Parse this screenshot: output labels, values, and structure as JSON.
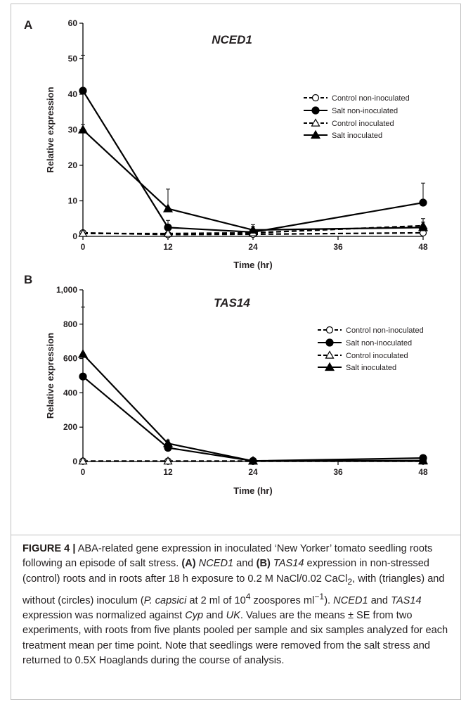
{
  "chart_data": [
    {
      "panel": "A",
      "type": "line",
      "title": "NCED1",
      "xlabel": "Time (hr)",
      "ylabel": "Relative expression",
      "x": [
        0,
        12,
        24,
        48
      ],
      "xticks": [
        "0",
        "12",
        "24",
        "36",
        "48"
      ],
      "xtick_values": [
        0,
        12,
        24,
        36,
        48
      ],
      "ylim": [
        0,
        60
      ],
      "yticks": [
        "0",
        "10",
        "20",
        "30",
        "40",
        "50",
        "60"
      ],
      "ytick_values": [
        0,
        10,
        20,
        30,
        40,
        50,
        60
      ],
      "legend_position": "right",
      "series": [
        {
          "name": "Control non-inoculated",
          "values": [
            1.0,
            0.5,
            0.6,
            1.0
          ],
          "errors": [
            0.5,
            0.3,
            0.3,
            0.5
          ],
          "marker": "circle-open",
          "line": "dashed"
        },
        {
          "name": "Salt non-inoculated",
          "values": [
            41.0,
            2.5,
            1.2,
            9.5
          ],
          "errors": [
            10.0,
            2.0,
            1.5,
            5.5
          ],
          "marker": "circle-filled",
          "line": "solid"
        },
        {
          "name": "Control inoculated",
          "values": [
            0.8,
            0.8,
            1.0,
            3.0
          ],
          "errors": [
            0.4,
            0.4,
            0.5,
            1.0
          ],
          "marker": "triangle-open",
          "line": "dashed"
        },
        {
          "name": "Salt inoculated",
          "values": [
            30.0,
            7.8,
            1.8,
            2.5
          ],
          "errors": [
            1.5,
            5.5,
            1.5,
            2.5
          ],
          "marker": "triangle-filled",
          "line": "solid"
        }
      ]
    },
    {
      "panel": "B",
      "type": "line",
      "title": "TAS14",
      "xlabel": "Time (hr)",
      "ylabel": "Relative expression",
      "x": [
        0,
        12,
        24,
        48
      ],
      "xticks": [
        "0",
        "12",
        "24",
        "36",
        "48"
      ],
      "xtick_values": [
        0,
        12,
        24,
        36,
        48
      ],
      "ylim": [
        0,
        1000
      ],
      "yticks": [
        "0",
        "200",
        "400",
        "600",
        "800",
        "1,000"
      ],
      "ytick_values": [
        0,
        200,
        400,
        600,
        800,
        1000
      ],
      "legend_position": "right",
      "series": [
        {
          "name": "Control non-inoculated",
          "values": [
            2,
            2,
            2,
            2
          ],
          "errors": [
            0,
            0,
            0,
            0
          ],
          "marker": "circle-open",
          "line": "dashed"
        },
        {
          "name": "Salt non-inoculated",
          "values": [
            495,
            80,
            3,
            20
          ],
          "errors": [
            140,
            15,
            2,
            5
          ],
          "marker": "circle-filled",
          "line": "solid"
        },
        {
          "name": "Control inoculated",
          "values": [
            2,
            2,
            2,
            2
          ],
          "errors": [
            0,
            0,
            0,
            0
          ],
          "marker": "triangle-open",
          "line": "dashed"
        },
        {
          "name": "Salt inoculated",
          "values": [
            625,
            105,
            3,
            5
          ],
          "errors": [
            275,
            20,
            2,
            3
          ],
          "marker": "triangle-filled",
          "line": "solid"
        }
      ]
    }
  ],
  "caption": {
    "label": "FIGURE 4 |",
    "text_1": " ABA-related gene expression in inoculated ‘New Yorker’ tomato seedling roots following an episode of salt stress. ",
    "a_ref": "(A)",
    "gene_1": "NCED1",
    "and_1": " and ",
    "b_ref": "(B)",
    "gene_2": "TAS14",
    "text_2": " expression in non-stressed (control) roots and in roots after 18 h exposure to 0.2 M NaCl/0.02 CaCl",
    "sub_2": "2",
    "text_3": ", with (triangles) and without (circles) inoculum (",
    "species": "P. capsici",
    "text_4": " at 2 ml of 10",
    "sup_4": "4",
    "text_5": " zoospores ml",
    "sup_minus1": "−1",
    "text_6": "). ",
    "gene_3": "NCED1",
    "and_2": " and ",
    "gene_4": "TAS14",
    "text_7": " expression was normalized against ",
    "norm_1": "Cyp",
    "and_3": " and ",
    "norm_2": "UK",
    "text_8": ". Values are the means ± SE from two experiments, with roots from five plants pooled per sample and six samples analyzed for each treatment mean per time point. Note that seedlings were removed from the salt stress and returned to 0.5X Hoaglands during the course of analysis."
  }
}
